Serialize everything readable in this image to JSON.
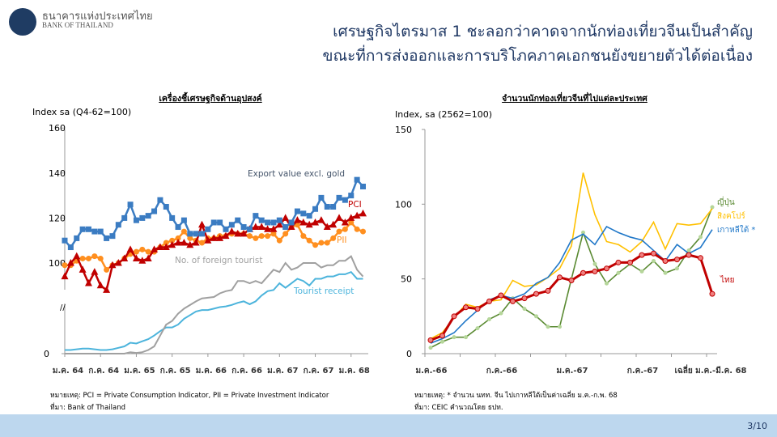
{
  "header": {
    "org_th": "ธนาคารแห่งประเทศไทย",
    "org_en": "BANK OF THAILAND",
    "title_line1": "เศรษฐกิจไตรมาส 1 ชะลอกว่าคาดจากนักท่องเที่ยวจีนเป็นสำคัญ",
    "title_line2": "ขณะที่การส่งออกและการบริโภคภาคเอกชนยังขยายตัวได้ต่อเนื่อง"
  },
  "left_notes": {
    "note": "หมายเหตุ: PCI = Private Consumption Indicator, PII = Private Investment Indicator",
    "source": "ที่มา: Bank of Thailand"
  },
  "right_notes": {
    "note": "หมายเหตุ: * จำนวน นทท. จีน ไปเกาหลีใต้เป็นค่าเฉลี่ย ม.ค.-ก.พ. 68",
    "source": "ที่มา: CEIC คำนวณโดย ธปท."
  },
  "page": "3/10",
  "chart_data": [
    {
      "type": "line",
      "title": "เครื่องชี้เศรษฐกิจด้านอุปสงค์",
      "ylabel": "Index sa (Q4-62=100)",
      "yticks": [
        "160",
        "140",
        "120",
        "100",
        "0"
      ],
      "ylim": [
        0,
        160
      ],
      "axis_break": true,
      "xticks": [
        "ม.ค. 64",
        "ก.ค. 64",
        "ม.ค. 65",
        "ก.ค. 65",
        "ม.ค. 66",
        "ก.ค. 66",
        "ม.ค. 67",
        "ก.ค. 67",
        "ม.ค. 68"
      ],
      "series": [
        {
          "name": "Export value excl. gold",
          "color": "#3b7cc2",
          "marker": "square",
          "values": [
            110,
            107,
            111,
            115,
            115,
            114,
            114,
            111,
            112,
            117,
            120,
            126,
            119,
            120,
            121,
            123,
            128,
            125,
            120,
            116,
            119,
            113,
            113,
            113,
            115,
            118,
            118,
            115,
            117,
            119,
            116,
            115,
            121,
            119,
            118,
            118,
            119,
            116,
            118,
            123,
            122,
            121,
            124,
            129,
            125,
            125,
            129,
            128,
            130,
            137,
            134
          ]
        },
        {
          "name": "PCI",
          "color": "#c00000",
          "marker": "triangle",
          "values": [
            94,
            100,
            103,
            97,
            91,
            96,
            90,
            88,
            99,
            100,
            102,
            106,
            102,
            101,
            102,
            106,
            107,
            107,
            108,
            109,
            109,
            108,
            109,
            117,
            110,
            111,
            111,
            112,
            114,
            113,
            113,
            115,
            116,
            116,
            115,
            115,
            117,
            120,
            116,
            119,
            118,
            117,
            118,
            119,
            116,
            117,
            120,
            118,
            120,
            121,
            122
          ]
        },
        {
          "name": "PII",
          "color": "#ff8f1f",
          "marker": "circle",
          "values": [
            99,
            99,
            101,
            102,
            102,
            103,
            102,
            97,
            99,
            100,
            102,
            104,
            105,
            106,
            105,
            105,
            107,
            109,
            110,
            111,
            114,
            111,
            110,
            109,
            111,
            111,
            112,
            112,
            113,
            113,
            113,
            112,
            111,
            112,
            112,
            113,
            110,
            113,
            116,
            117,
            112,
            110,
            108,
            109,
            109,
            111,
            114,
            115,
            118,
            115,
            114
          ]
        },
        {
          "name": "No. of foreign tourist",
          "color": "#a0a0a0",
          "marker": "none",
          "values": [
            0,
            0,
            0,
            0,
            0,
            0,
            0,
            0,
            0,
            0,
            0,
            2,
            1,
            2,
            5,
            10,
            25,
            40,
            45,
            55,
            62,
            67,
            72,
            76,
            77,
            78,
            83,
            86,
            88,
            92,
            92,
            91,
            92,
            91,
            94,
            97,
            96,
            100,
            97,
            98,
            100,
            100,
            100,
            98,
            99,
            99,
            101,
            101,
            103,
            97,
            94
          ]
        },
        {
          "name": "Tourist receipt",
          "color": "#4cb4dc",
          "marker": "none",
          "values": [
            5,
            5,
            6,
            7,
            7,
            6,
            5,
            5,
            6,
            8,
            10,
            15,
            14,
            17,
            20,
            25,
            31,
            36,
            36,
            40,
            48,
            53,
            58,
            60,
            60,
            62,
            64,
            65,
            67,
            70,
            72,
            68,
            72,
            80,
            86,
            88,
            91,
            89,
            91,
            93,
            92,
            90,
            93,
            93,
            94,
            94,
            95,
            95,
            96,
            93,
            93
          ]
        }
      ]
    },
    {
      "type": "line",
      "title": "จำนวนนักท่องเที่ยวจีนที่ไปแต่ละประเทศ",
      "ylabel": "Index, sa (2562=100)",
      "yticks": [
        "150",
        "100",
        "50",
        "0"
      ],
      "ylim": [
        0,
        150
      ],
      "xticks": [
        "ม.ค.-66",
        "ก.ค.-66",
        "ม.ค.-67",
        "ก.ค.-67",
        "เฉลี่ย ม.ค.-มี.ค. 68"
      ],
      "series": [
        {
          "name": "ญี่ปุ่น",
          "color": "#5a8a32",
          "marker": "dot-light",
          "values": [
            4,
            8,
            11,
            11,
            17,
            23,
            27,
            37,
            30,
            25,
            18,
            18,
            50,
            81,
            60,
            47,
            54,
            60,
            55,
            62,
            54,
            57,
            69,
            78,
            98
          ]
        },
        {
          "name": "สิงคโปร์",
          "color": "#ffc000",
          "marker": "none",
          "values": [
            10,
            14,
            24,
            33,
            31,
            35,
            36,
            49,
            45,
            46,
            51,
            57,
            72,
            121,
            93,
            75,
            73,
            68,
            75,
            88,
            70,
            87,
            86,
            87,
            97
          ]
        },
        {
          "name": "เกาหลีใต้ *",
          "color": "#1f77c8",
          "marker": "none",
          "values": [
            7,
            10,
            14,
            22,
            29,
            36,
            39,
            37,
            40,
            47,
            51,
            61,
            76,
            80,
            73,
            85,
            81,
            78,
            76,
            69,
            62,
            73,
            67,
            71,
            83
          ]
        },
        {
          "name": "ไทย",
          "color": "#c00000",
          "marker": "dot",
          "values": [
            9,
            12,
            25,
            31,
            30,
            35,
            39,
            35,
            37,
            40,
            42,
            51,
            49,
            54,
            55,
            57,
            61,
            61,
            66,
            67,
            62,
            63,
            66,
            64,
            40
          ]
        }
      ]
    }
  ]
}
